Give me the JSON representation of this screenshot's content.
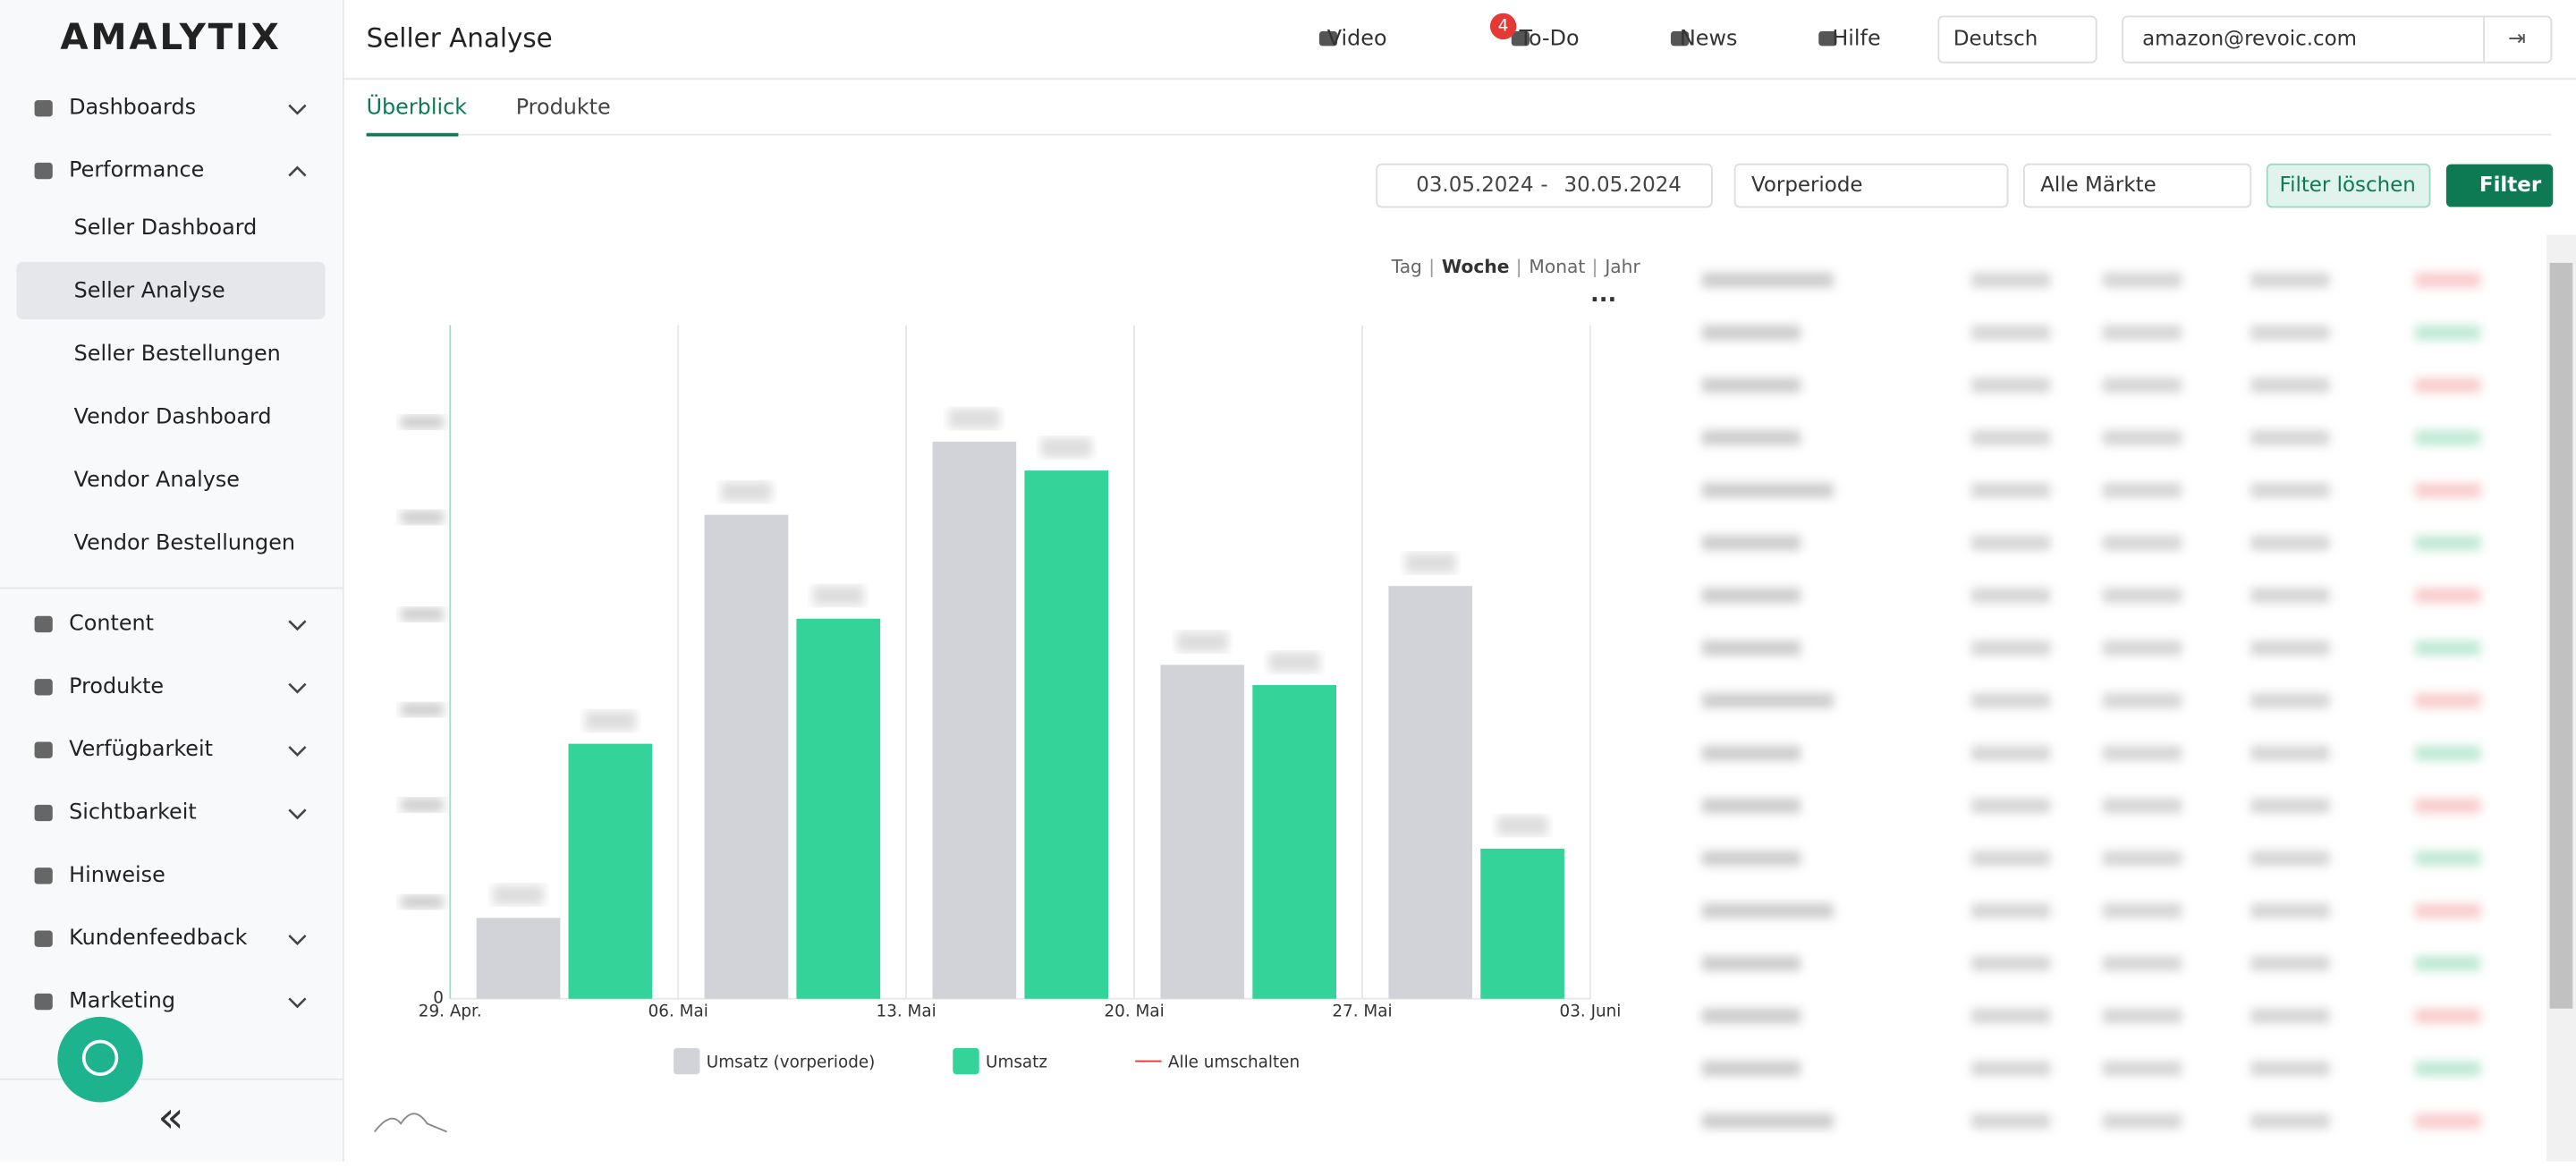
{
  "logo": "AMALYTIX",
  "sidebar": {
    "groups": [
      {
        "label": "Dashboards"
      },
      {
        "label": "Performance",
        "items": [
          "Seller Dashboard",
          "Seller Analyse",
          "Seller Bestellungen",
          "Vendor Dashboard",
          "Vendor Analyse",
          "Vendor Bestellungen"
        ]
      }
    ],
    "more": [
      "Content",
      "Produkte",
      "Verfügbarkeit",
      "Sichtbarkeit",
      "Hinweise",
      "Kundenfeedback",
      "Marketing"
    ]
  },
  "header": {
    "title": "Seller Analyse",
    "links": [
      "Video",
      "To-Do",
      "News",
      "Hilfe"
    ],
    "todo_badge": "4",
    "language": "Deutsch",
    "account": "amazon@revoic.com"
  },
  "tabs": [
    "Überblick",
    "Produkte"
  ],
  "filters": {
    "date_from": "03.05.2024",
    "date_sep": "-",
    "date_to": "30.05.2024",
    "compare": "Vorperiode",
    "market": "Alle Märkte",
    "clear": "Filter löschen",
    "apply": "Filter"
  },
  "periods": [
    "Tag",
    "Woche",
    "Monat",
    "Jahr"
  ],
  "chart_data": {
    "type": "bar",
    "categories": [
      null,
      null,
      null,
      null,
      null
    ],
    "xtick_labels": [
      "29. Apr.",
      "06. Mai",
      "13. Mai",
      "20. Mai",
      "27. Mai",
      "03. Juni"
    ],
    "series": [
      {
        "name": "Umsatz (vorperiode)",
        "color": "#d1d3d9",
        "values": [
          0.84,
          5.03,
          5.79,
          3.47,
          4.29
        ]
      },
      {
        "name": "Umsatz",
        "color": "#34d399",
        "values": [
          2.65,
          3.95,
          5.49,
          3.26,
          1.56
        ]
      }
    ],
    "toggle_all": "Alle umschalten",
    "ylim": [
      0,
      7
    ],
    "yticks": [
      0
    ]
  }
}
